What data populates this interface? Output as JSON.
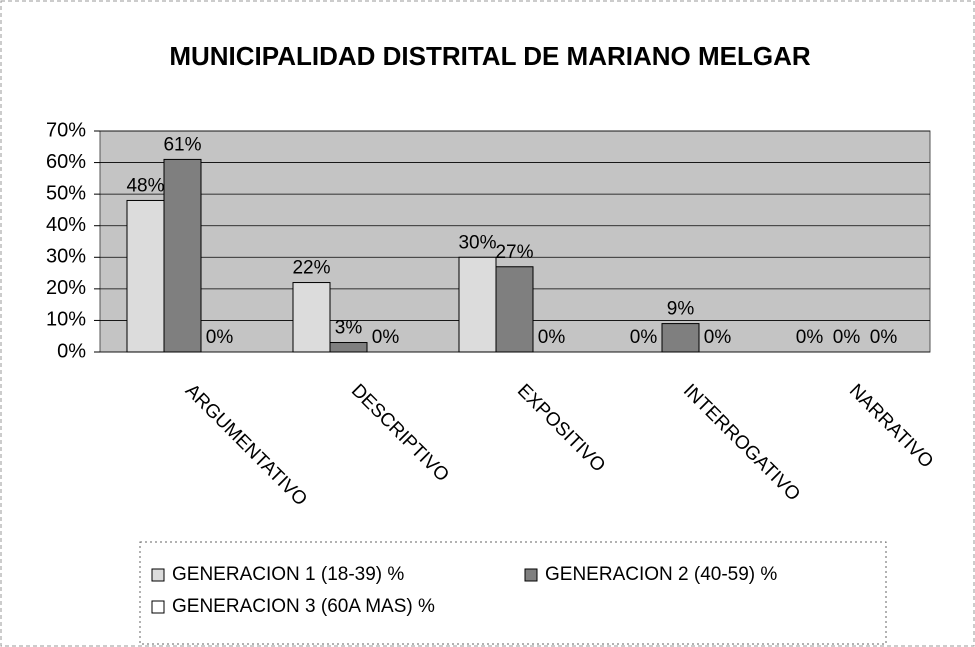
{
  "chart_data": {
    "type": "bar",
    "title": "MUNICIPALIDAD DISTRITAL DE MARIANO MELGAR",
    "categories": [
      "ARGUMENTATIVO",
      "DESCRIPTIVO",
      "EXPOSITIVO",
      "INTERROGATIVO",
      "NARRATIVO"
    ],
    "series": [
      {
        "name": "GENERACION 1 (18-39) %",
        "color": "#dcdcdc",
        "values": [
          48,
          22,
          30,
          0,
          0
        ],
        "value_labels": [
          "48%",
          "22%",
          "30%",
          "0%",
          "0%"
        ]
      },
      {
        "name": "GENERACION 2 (40-59) %",
        "color": "#7f7f7f",
        "values": [
          61,
          3,
          27,
          9,
          0
        ],
        "value_labels": [
          "61%",
          "3%",
          "27%",
          "9%",
          "0%"
        ]
      },
      {
        "name": "GENERACION 3 (60A MAS) %",
        "color": "#ffffff",
        "values": [
          0,
          0,
          0,
          0,
          0
        ],
        "value_labels": [
          "0%",
          "0%",
          "0%",
          "0%",
          "0%"
        ]
      }
    ],
    "ylim": [
      0,
      70
    ],
    "yticks": [
      {
        "value": 0,
        "label": "0%"
      },
      {
        "value": 10,
        "label": "10%"
      },
      {
        "value": 20,
        "label": "20%"
      },
      {
        "value": 30,
        "label": "30%"
      },
      {
        "value": 40,
        "label": "40%"
      },
      {
        "value": 50,
        "label": "50%"
      },
      {
        "value": 60,
        "label": "60%"
      },
      {
        "value": 70,
        "label": "70%"
      }
    ],
    "grid": true
  }
}
